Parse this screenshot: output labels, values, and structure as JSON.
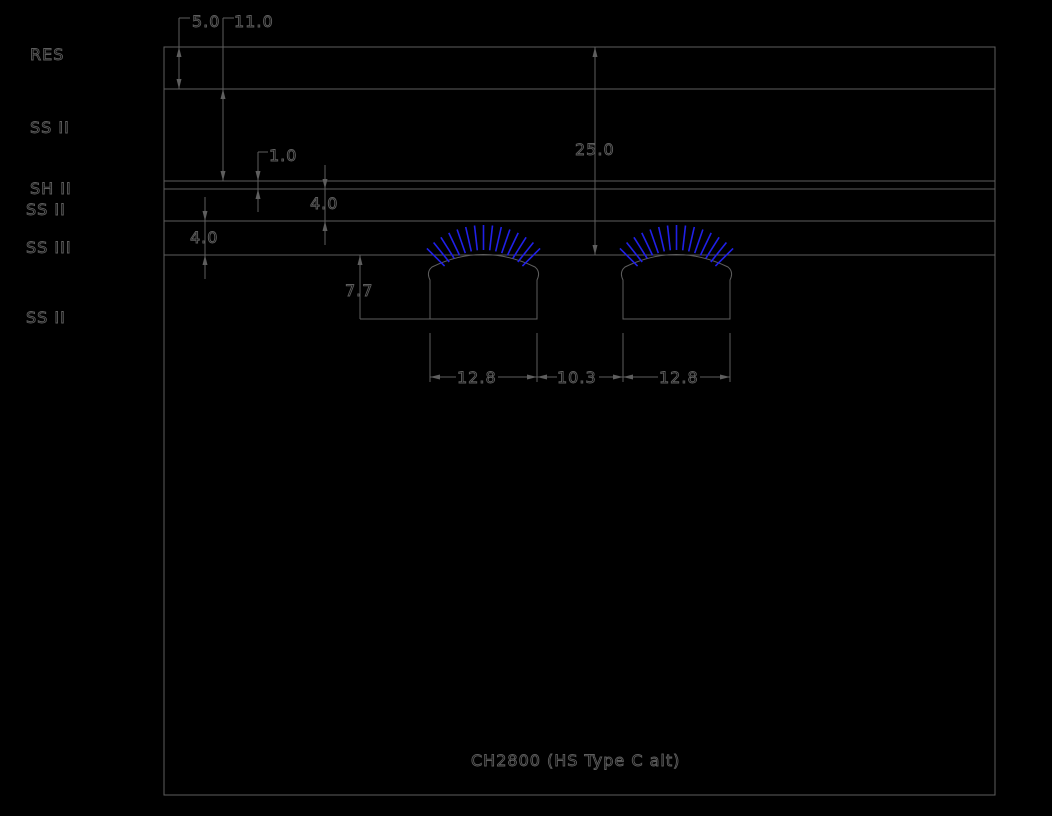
{
  "colors": {
    "background": "#000000",
    "linework": "#5e5e5e",
    "rays": "#2020e8"
  },
  "layers": {
    "res": "RES",
    "ss_ii_upper": "SS II",
    "sh_ii": "SH II",
    "ss_ii_middle": "SS II",
    "ss_iii": "SS III",
    "ss_ii_lower": "SS II"
  },
  "dimensions": {
    "res_thickness": "5.0",
    "top_to_sh": "11.0",
    "sh_thickness": "1.0",
    "ss_ii_thickness": "4.0",
    "ss_iii_thickness": "4.0",
    "total_depth": "25.0",
    "feature_height": "7.7",
    "feature_width_left": "12.8",
    "feature_gap": "10.3",
    "feature_width_right": "12.8"
  },
  "caption": "CH2800 (HS Type C alt)"
}
